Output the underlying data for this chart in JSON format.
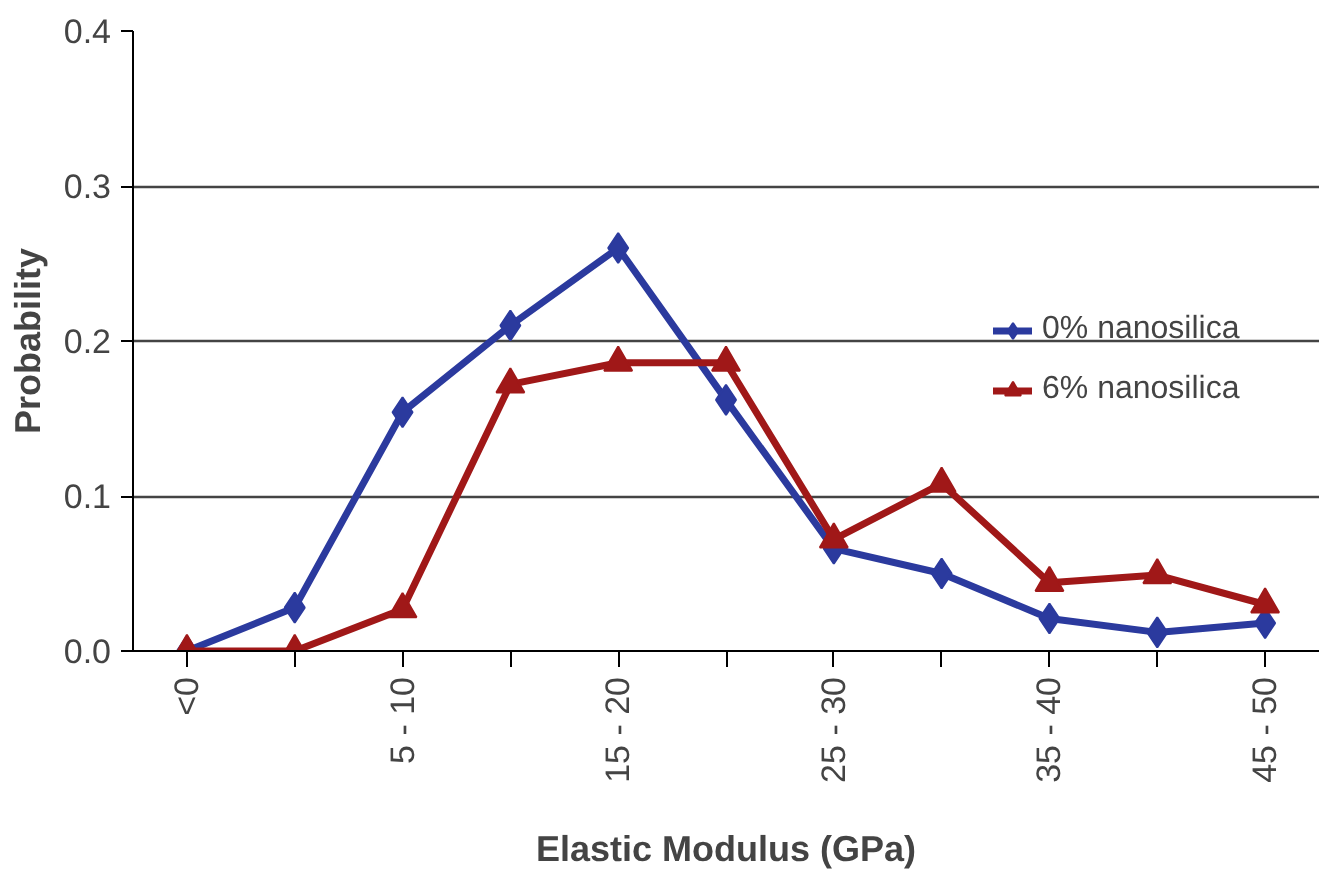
{
  "chart_data": {
    "type": "line",
    "xlabel": "Elastic Modulus (GPa)",
    "ylabel": "Probability",
    "categories": [
      "<0",
      null,
      "5 - 10",
      null,
      "15 - 20",
      null,
      "25 - 30",
      null,
      "35 - 40",
      null,
      "45 - 50"
    ],
    "series": [
      {
        "name": "0% nanosilica",
        "color": "#2b3a9e",
        "marker": "diamond",
        "values": [
          0,
          0.028,
          0.154,
          0.21,
          0.26,
          0.162,
          0.066,
          0.05,
          0.021,
          0.012,
          0.018
        ]
      },
      {
        "name": "6% nanosilica",
        "color": "#a01818",
        "marker": "triangle",
        "values": [
          0,
          0,
          0.027,
          0.172,
          0.186,
          0.186,
          0.072,
          0.108,
          0.044,
          0.049,
          0.03
        ]
      }
    ],
    "ylim": [
      0,
      0.4
    ],
    "yticks": [
      {
        "value": 0,
        "label": "0.0"
      },
      0.1,
      0.2,
      0.3,
      0.4
    ],
    "grid": "y",
    "legend": "right",
    "line_style": "solid"
  }
}
